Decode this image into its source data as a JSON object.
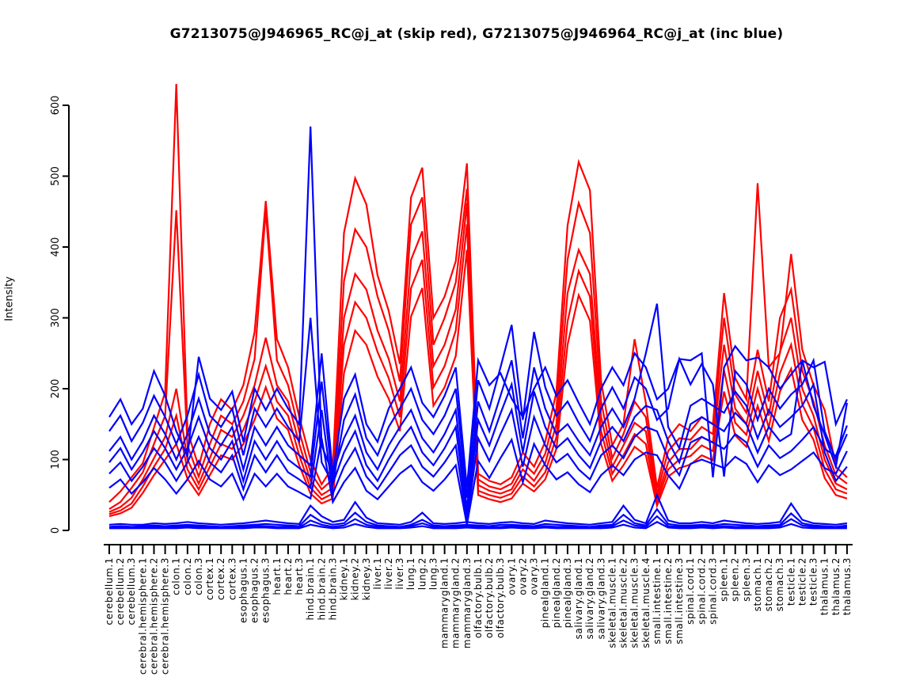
{
  "window": {
    "background": "#ffffff"
  },
  "chart_data": {
    "type": "line",
    "title": "G7213075@J946965_RC@j_at (skip red), G7213075@J946964_RC@j_at (inc blue)",
    "xlabel": "",
    "ylabel": "Intensity",
    "ylim": [
      0,
      600
    ],
    "yticks": [
      0,
      100,
      200,
      300,
      400,
      500,
      600
    ],
    "grid": false,
    "legend_position": "none",
    "colors": {
      "skip_probe": "#FF0000",
      "inc_probe": "#0000FF"
    },
    "categories": [
      "cerebellum.1",
      "cerebellum.2",
      "cerebellum.3",
      "cerebral.hemisphere.1",
      "cerebral.hemisphere.2",
      "cerebral.hemisphere.3",
      "colon.1",
      "colon.2",
      "colon.3",
      "cortex.1",
      "cortex.2",
      "cortex.3",
      "esophagus.1",
      "esophagus.2",
      "esophagus.3",
      "heart.1",
      "heart.2",
      "heart.3",
      "hind.brain.1",
      "hind.brain.2",
      "hind.brain.3",
      "kidney.1",
      "kidney.2",
      "kidney.3",
      "liver.1",
      "liver.2",
      "liver.3",
      "lung.1",
      "lung.2",
      "lung.3",
      "mammarygland.1",
      "mammarygland.2",
      "mammarygland.3",
      "olfactory.bulb.1",
      "olfactory.bulb.2",
      "olfactory.bulb.3",
      "ovary.1",
      "ovary.2",
      "ovary.3",
      "pinealgland.1",
      "pinealgland.2",
      "pinealgland.3",
      "salivary.gland.1",
      "salivary.gland.2",
      "salivary.gland.3",
      "skeletal.muscle.1",
      "skeletal.muscle.2",
      "skeletal.muscle.3",
      "skeletal.muscle.4",
      "small.intestine.1",
      "small.intestine.2",
      "small.intestine.3",
      "spinal.cord.1",
      "spinal.cord.2",
      "spinal.cord.3",
      "spleen.1",
      "spleen.2",
      "spleen.3",
      "stomach.1",
      "stomach.2",
      "stomach.3",
      "testicle.1",
      "testicle.2",
      "testicle.3",
      "thalamus.1",
      "thalamus.2",
      "thalamus.3"
    ],
    "series": [
      {
        "name": "skip.rep1",
        "group": "G7213075@J946965_RC@j_at",
        "color": "#FF0000",
        "values": [
          40,
          55,
          75,
          95,
          145,
          195,
          630,
          140,
          90,
          150,
          185,
          170,
          205,
          280,
          465,
          270,
          230,
          160,
          100,
          65,
          90,
          420,
          497,
          460,
          360,
          310,
          235,
          470,
          512,
          300,
          330,
          380,
          518,
          80,
          70,
          65,
          75,
          110,
          90,
          125,
          195,
          430,
          520,
          480,
          210,
          120,
          150,
          270,
          180,
          60,
          130,
          150,
          140,
          160,
          150,
          335,
          215,
          185,
          490,
          230,
          250,
          390,
          255,
          205,
          170,
          90,
          75
        ]
      },
      {
        "name": "skip.rep2",
        "group": "G7213075@J946965_RC@j_at",
        "color": "#FF0000",
        "values": [
          30,
          40,
          60,
          82,
          122,
          162,
          452,
          120,
          76,
          122,
          162,
          150,
          182,
          242,
          452,
          240,
          205,
          140,
          82,
          58,
          72,
          352,
          425,
          400,
          330,
          282,
          210,
          432,
          470,
          262,
          300,
          350,
          482,
          72,
          62,
          58,
          66,
          96,
          80,
          108,
          172,
          382,
          462,
          420,
          182,
          102,
          136,
          182,
          160,
          52,
          112,
          130,
          128,
          146,
          136,
          300,
          192,
          166,
          255,
          182,
          300,
          340,
          225,
          182,
          120,
          78,
          66
        ]
      },
      {
        "name": "skip.rep3",
        "group": "G7213075@J946965_RC@j_at",
        "color": "#FF0000",
        "values": [
          26,
          33,
          46,
          72,
          102,
          132,
          200,
          100,
          66,
          102,
          142,
          132,
          162,
          205,
          272,
          205,
          182,
          122,
          70,
          50,
          60,
          300,
          362,
          340,
          282,
          242,
          182,
          382,
          422,
          232,
          262,
          312,
          462,
          64,
          56,
          52,
          58,
          86,
          70,
          95,
          150,
          335,
          396,
          362,
          160,
          90,
          120,
          152,
          140,
          46,
          96,
          115,
          115,
          132,
          124,
          262,
          172,
          150,
          225,
          162,
          252,
          300,
          200,
          162,
          100,
          66,
          58
        ]
      },
      {
        "name": "skip.rep4",
        "group": "G7213075@J946965_RC@j_at",
        "color": "#FF0000",
        "values": [
          23,
          28,
          38,
          62,
          90,
          115,
          162,
          86,
          58,
          90,
          122,
          115,
          142,
          182,
          232,
          182,
          162,
          106,
          60,
          44,
          52,
          262,
          322,
          300,
          252,
          215,
          160,
          342,
          382,
          202,
          232,
          282,
          432,
          56,
          50,
          46,
          52,
          76,
          62,
          82,
          132,
          295,
          366,
          330,
          140,
          80,
          106,
          136,
          122,
          40,
          86,
          100,
          105,
          120,
          112,
          226,
          152,
          135,
          200,
          145,
          222,
          262,
          178,
          145,
          86,
          58,
          52
        ]
      },
      {
        "name": "skip.rep5",
        "group": "G7213075@J946965_RC@j_at",
        "color": "#FF0000",
        "values": [
          20,
          24,
          32,
          53,
          78,
          100,
          122,
          73,
          50,
          78,
          106,
          100,
          122,
          156,
          202,
          158,
          142,
          92,
          52,
          38,
          45,
          222,
          282,
          262,
          217,
          186,
          140,
          302,
          342,
          176,
          202,
          246,
          396,
          50,
          44,
          40,
          45,
          66,
          55,
          72,
          115,
          262,
          332,
          296,
          122,
          70,
          92,
          118,
          106,
          35,
          76,
          88,
          93,
          106,
          99,
          196,
          134,
          118,
          176,
          126,
          196,
          228,
          156,
          128,
          74,
          50,
          45
        ]
      },
      {
        "name": "inc.rep1",
        "group": "G7213075@J946964_RC@j_at",
        "color": "#0000FF",
        "values": [
          160,
          185,
          150,
          172,
          225,
          190,
          140,
          105,
          245,
          186,
          170,
          196,
          125,
          200,
          170,
          200,
          172,
          150,
          570,
          120,
          80,
          186,
          220,
          150,
          125,
          172,
          200,
          230,
          180,
          160,
          190,
          230,
          60,
          240,
          205,
          222,
          186,
          160,
          200,
          230,
          190,
          212,
          180,
          150,
          200,
          230,
          205,
          250,
          230,
          185,
          200,
          242,
          240,
          250,
          75,
          230,
          260,
          240,
          244,
          230,
          200,
          220,
          240,
          230,
          238,
          150,
          185
        ]
      },
      {
        "name": "inc.rep2",
        "group": "G7213075@J946964_RC@j_at",
        "color": "#0000FF",
        "values": [
          140,
          162,
          126,
          152,
          190,
          160,
          122,
          162,
          220,
          162,
          146,
          172,
          106,
          172,
          146,
          172,
          146,
          126,
          300,
          96,
          66,
          156,
          192,
          130,
          106,
          146,
          172,
          200,
          156,
          136,
          162,
          200,
          46,
          212,
          172,
          230,
          290,
          156,
          280,
          202,
          162,
          182,
          152,
          126,
          172,
          202,
          172,
          216,
          200,
          156,
          172,
          242,
          206,
          235,
          206,
          76,
          225,
          206,
          156,
          200,
          172,
          192,
          206,
          240,
          140,
          100,
          136
        ]
      },
      {
        "name": "inc.rep3",
        "group": "G7213075@J946964_RC@j_at",
        "color": "#0000FF",
        "values": [
          112,
          132,
          100,
          126,
          162,
          136,
          100,
          136,
          186,
          136,
          120,
          146,
          86,
          146,
          120,
          146,
          120,
          106,
          92,
          250,
          80,
          130,
          162,
          110,
          86,
          120,
          146,
          170,
          130,
          110,
          136,
          170,
          30,
          182,
          140,
          190,
          240,
          130,
          230,
          172,
          136,
          150,
          126,
          106,
          146,
          172,
          146,
          186,
          250,
          320,
          146,
          116,
          176,
          186,
          176,
          166,
          196,
          176,
          130,
          170,
          146,
          160,
          176,
          206,
          110,
          70,
          90
        ]
      },
      {
        "name": "inc.rep4",
        "group": "G7213075@J946964_RC@j_at",
        "color": "#0000FF",
        "values": [
          96,
          116,
          86,
          110,
          140,
          116,
          86,
          116,
          160,
          116,
          100,
          126,
          70,
          126,
          100,
          126,
          100,
          88,
          76,
          210,
          66,
          110,
          140,
          92,
          70,
          100,
          126,
          146,
          110,
          92,
          116,
          146,
          20,
          156,
          120,
          165,
          206,
          110,
          196,
          146,
          116,
          130,
          106,
          88,
          126,
          146,
          126,
          160,
          176,
          170,
          126,
          96,
          150,
          160,
          150,
          140,
          166,
          150,
          110,
          146,
          126,
          136,
          240,
          176,
          135,
          90,
          180
        ]
      },
      {
        "name": "inc.rep5",
        "group": "G7213075@J946964_RC@j_at",
        "color": "#0000FF",
        "values": [
          80,
          96,
          70,
          90,
          116,
          96,
          70,
          96,
          132,
          96,
          82,
          106,
          58,
          106,
          82,
          106,
          82,
          72,
          60,
          170,
          52,
          90,
          116,
          76,
          58,
          82,
          106,
          120,
          90,
          76,
          96,
          120,
          12,
          130,
          98,
          136,
          170,
          90,
          160,
          120,
          96,
          108,
          86,
          72,
          106,
          120,
          102,
          132,
          146,
          140,
          102,
          78,
          124,
          132,
          124,
          115,
          136,
          124,
          90,
          120,
          102,
          112,
          128,
          146,
          115,
          105,
          148
        ]
      },
      {
        "name": "inc.rep6",
        "group": "G7213075@J946964_RC@j_at",
        "color": "#0000FF",
        "values": [
          60,
          72,
          52,
          68,
          88,
          72,
          52,
          72,
          98,
          72,
          62,
          80,
          44,
          80,
          62,
          80,
          62,
          54,
          45,
          130,
          40,
          68,
          88,
          56,
          44,
          62,
          80,
          92,
          68,
          56,
          72,
          92,
          8,
          98,
          74,
          102,
          128,
          68,
          122,
          92,
          72,
          82,
          65,
          54,
          78,
          92,
          78,
          100,
          110,
          106,
          78,
          59,
          94,
          100,
          94,
          88,
          104,
          94,
          68,
          92,
          78,
          86,
          98,
          110,
          88,
          80,
          112
        ]
      },
      {
        "name": "inc.low1",
        "group": "G7213075@J946964_RC@j_at",
        "color": "#0000FF",
        "values": [
          8,
          9,
          8,
          8,
          10,
          9,
          10,
          12,
          10,
          9,
          8,
          9,
          10,
          12,
          14,
          12,
          10,
          9,
          35,
          20,
          12,
          15,
          40,
          18,
          10,
          9,
          8,
          12,
          25,
          10,
          9,
          10,
          12,
          10,
          9,
          11,
          12,
          10,
          9,
          14,
          12,
          10,
          9,
          8,
          10,
          12,
          35,
          15,
          10,
          50,
          14,
          10,
          10,
          12,
          10,
          14,
          12,
          10,
          9,
          10,
          12,
          38,
          15,
          10,
          9,
          8,
          10
        ]
      },
      {
        "name": "inc.low2",
        "group": "G7213075@J946964_RC@j_at",
        "color": "#0000FF",
        "values": [
          5,
          6,
          5,
          6,
          7,
          6,
          7,
          8,
          7,
          6,
          5,
          6,
          7,
          8,
          9,
          8,
          7,
          6,
          22,
          12,
          8,
          10,
          25,
          12,
          7,
          6,
          5,
          8,
          15,
          7,
          6,
          7,
          8,
          7,
          6,
          8,
          8,
          7,
          6,
          9,
          8,
          7,
          6,
          5,
          7,
          8,
          22,
          10,
          7,
          30,
          9,
          7,
          7,
          8,
          7,
          9,
          8,
          7,
          6,
          7,
          8,
          24,
          10,
          7,
          6,
          5,
          7
        ]
      },
      {
        "name": "inc.low3",
        "group": "G7213075@J946964_RC@j_at",
        "color": "#0000FF",
        "values": [
          4,
          4,
          4,
          4,
          5,
          4,
          5,
          6,
          5,
          4,
          4,
          4,
          5,
          6,
          6,
          5,
          5,
          4,
          14,
          8,
          5,
          7,
          16,
          8,
          5,
          4,
          4,
          6,
          10,
          5,
          4,
          5,
          6,
          5,
          4,
          5,
          6,
          5,
          4,
          6,
          5,
          5,
          4,
          4,
          5,
          6,
          14,
          7,
          5,
          20,
          6,
          5,
          5,
          6,
          5,
          6,
          5,
          5,
          4,
          5,
          6,
          16,
          7,
          5,
          4,
          4,
          5
        ]
      },
      {
        "name": "inc.low4",
        "group": "G7213075@J946964_RC@j_at",
        "color": "#0000FF",
        "values": [
          3,
          3,
          3,
          3,
          3,
          3,
          3,
          4,
          3,
          3,
          3,
          3,
          3,
          4,
          4,
          3,
          3,
          3,
          8,
          5,
          3,
          4,
          9,
          5,
          3,
          3,
          3,
          4,
          6,
          3,
          3,
          3,
          4,
          3,
          3,
          3,
          4,
          3,
          3,
          4,
          3,
          3,
          3,
          3,
          3,
          4,
          8,
          4,
          3,
          12,
          4,
          3,
          3,
          4,
          3,
          4,
          3,
          3,
          3,
          3,
          4,
          9,
          4,
          3,
          3,
          3,
          3
        ]
      }
    ]
  }
}
